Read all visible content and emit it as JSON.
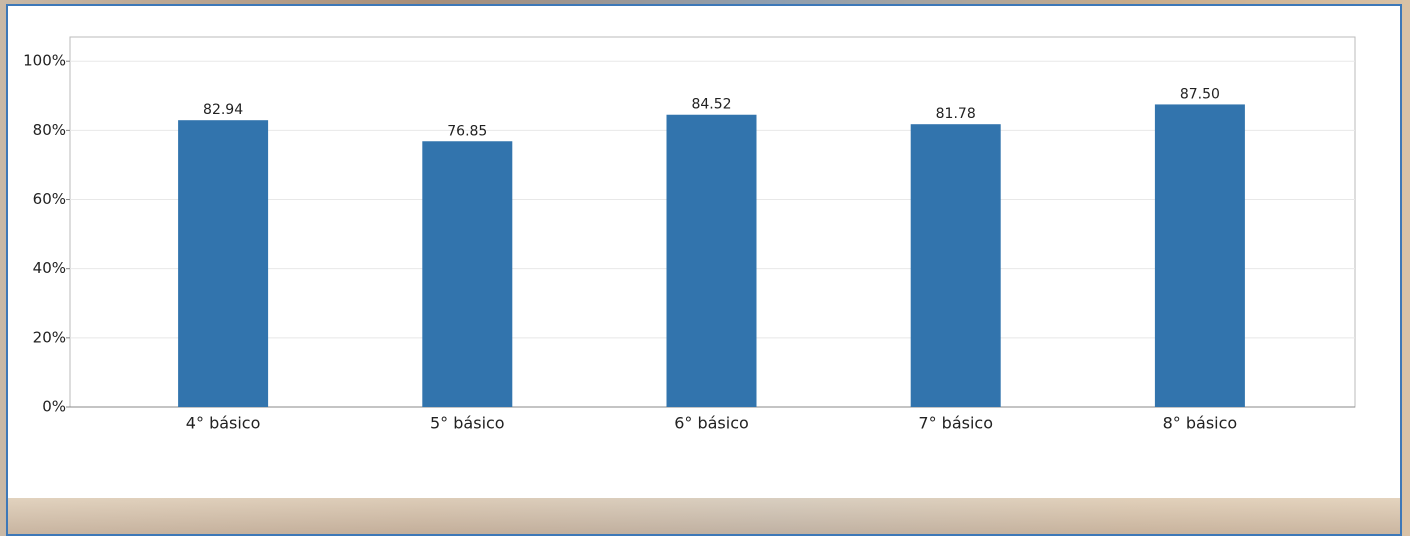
{
  "chart_data": {
    "type": "bar",
    "categories": [
      "4° básico",
      "5° básico",
      "6° básico",
      "7° básico",
      "8° básico"
    ],
    "values": [
      82.94,
      76.85,
      84.52,
      81.78,
      87.5
    ],
    "value_labels": [
      "82.94",
      "76.85",
      "84.52",
      "81.78",
      "87.50"
    ],
    "color": "#3274ad",
    "ylim": [
      0,
      107
    ],
    "yticks": [
      {
        "value": 0,
        "label": "0%"
      },
      {
        "value": 20,
        "label": "20%"
      },
      {
        "value": 40,
        "label": "40%"
      },
      {
        "value": 60,
        "label": "60%"
      },
      {
        "value": 80,
        "label": "80%"
      },
      {
        "value": 100,
        "label": "100%"
      }
    ],
    "grid": true
  }
}
